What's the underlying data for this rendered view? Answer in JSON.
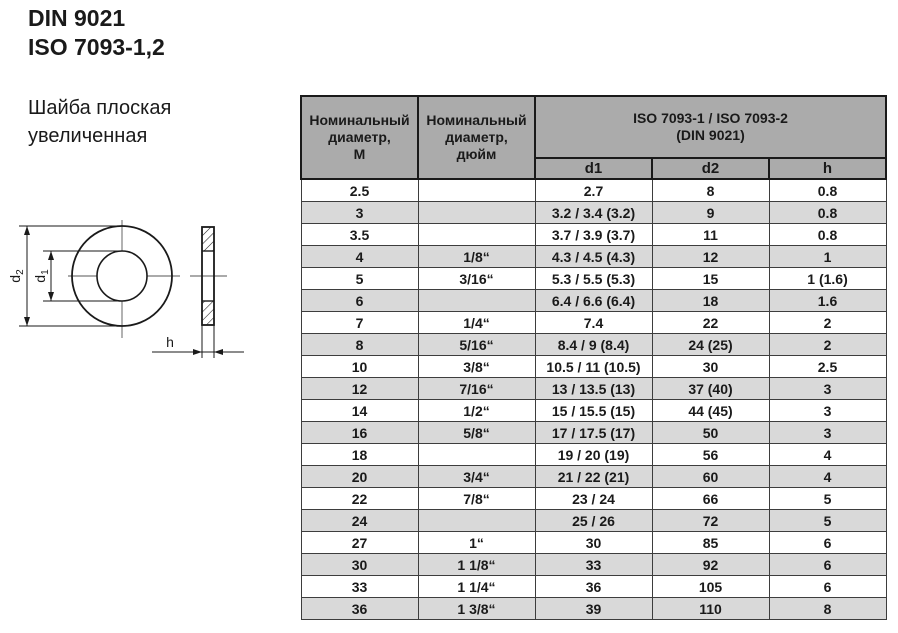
{
  "page": {
    "title_line1": "DIN 9021",
    "title_line2": "ISO 7093-1,2",
    "subtitle_line1": "Шайба плоская",
    "subtitle_line2": "увеличенная"
  },
  "colors": {
    "header_bg": "#ababab",
    "row_alt_bg": "#d9d9d9",
    "border": "#1a1a1a",
    "text": "#1a1a1a"
  },
  "drawing": {
    "dim_d2": {
      "base": "d",
      "sub": "2"
    },
    "dim_d1": {
      "base": "d",
      "sub": "1"
    },
    "dim_h": "h"
  },
  "table": {
    "header": {
      "nominal_m": "Номинальный\nдиаметр,\nМ",
      "nominal_inch": "Номинальный\nдиаметр,\nдюйм",
      "iso_group": "ISO 7093-1 / ISO 7093-2\n(DIN 9021)",
      "d1": "d1",
      "d2": "d2",
      "h": "h"
    },
    "rows": [
      [
        "2.5",
        "",
        "2.7",
        "8",
        "0.8"
      ],
      [
        "3",
        "",
        "3.2 / 3.4 (3.2)",
        "9",
        "0.8"
      ],
      [
        "3.5",
        "",
        "3.7 / 3.9 (3.7)",
        "11",
        "0.8"
      ],
      [
        "4",
        "1/8“",
        "4.3 / 4.5 (4.3)",
        "12",
        "1"
      ],
      [
        "5",
        "3/16“",
        "5.3 / 5.5 (5.3)",
        "15",
        "1 (1.6)"
      ],
      [
        "6",
        "",
        "6.4 / 6.6 (6.4)",
        "18",
        "1.6"
      ],
      [
        "7",
        "1/4“",
        "7.4",
        "22",
        "2"
      ],
      [
        "8",
        "5/16“",
        "8.4 / 9 (8.4)",
        "24 (25)",
        "2"
      ],
      [
        "10",
        "3/8“",
        "10.5 / 11 (10.5)",
        "30",
        "2.5"
      ],
      [
        "12",
        "7/16“",
        "13 / 13.5 (13)",
        "37 (40)",
        "3"
      ],
      [
        "14",
        "1/2“",
        "15 / 15.5 (15)",
        "44 (45)",
        "3"
      ],
      [
        "16",
        "5/8“",
        "17 / 17.5 (17)",
        "50",
        "3"
      ],
      [
        "18",
        "",
        "19 / 20 (19)",
        "56",
        "4"
      ],
      [
        "20",
        "3/4“",
        "21 / 22 (21)",
        "60",
        "4"
      ],
      [
        "22",
        "7/8“",
        "23 / 24",
        "66",
        "5"
      ],
      [
        "24",
        "",
        "25 / 26",
        "72",
        "5"
      ],
      [
        "27",
        "1“",
        "30",
        "85",
        "6"
      ],
      [
        "30",
        "1 1/8“",
        "33",
        "92",
        "6"
      ],
      [
        "33",
        "1 1/4“",
        "36",
        "105",
        "6"
      ],
      [
        "36",
        "1 3/8“",
        "39",
        "110",
        "8"
      ]
    ]
  }
}
